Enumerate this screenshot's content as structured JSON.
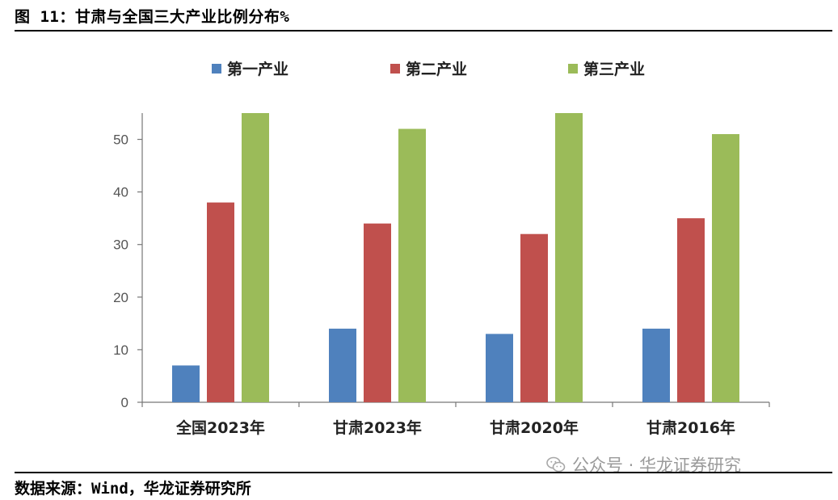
{
  "figure": {
    "title": "图 11：甘肃与全国三大产业比例分布%",
    "source": "数据来源：Wind，华龙证券研究所"
  },
  "watermark": {
    "text": "公众号 · 华龙证券研究",
    "icon": "wechat-icon"
  },
  "chart_data": {
    "type": "bar",
    "categories": [
      "全国2023年",
      "甘肃2023年",
      "甘肃2020年",
      "甘肃2016年"
    ],
    "series": [
      {
        "name": "第一产业",
        "color": "#4F81BD",
        "values": [
          7,
          14,
          13,
          14
        ]
      },
      {
        "name": "第二产业",
        "color": "#C0504D",
        "values": [
          38,
          34,
          32,
          35
        ]
      },
      {
        "name": "第三产业",
        "color": "#9BBB59",
        "values": [
          55,
          52,
          55,
          51
        ]
      }
    ],
    "yticks": [
      0,
      10,
      20,
      30,
      40,
      50
    ],
    "ylim": [
      0,
      55
    ],
    "grid": false,
    "legend_position": "top"
  }
}
